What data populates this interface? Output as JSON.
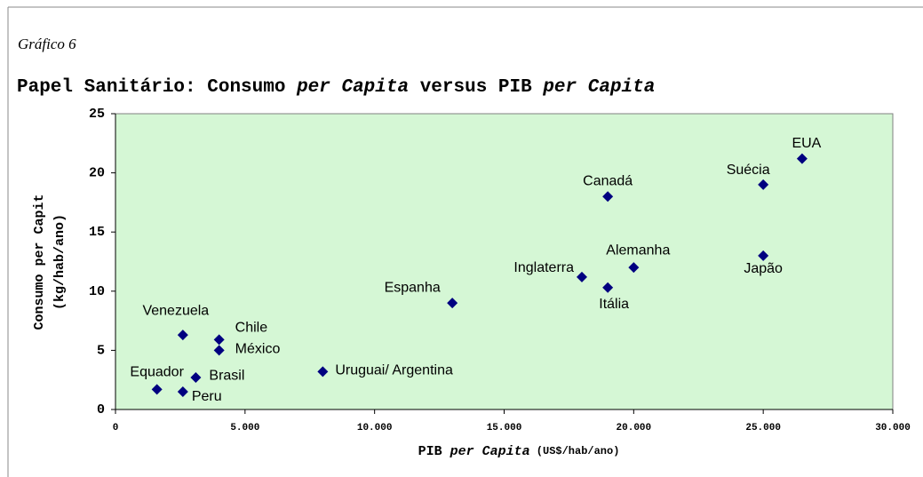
{
  "chart_data": {
    "type": "scatter",
    "subtitle": "Gráfico 6",
    "title": [
      "Papel Sanitário: Consumo ",
      "per Capita",
      " versus PIB ",
      "per Capita"
    ],
    "x_label": [
      "PIB ",
      "per Capita",
      " (US$/hab/ano)"
    ],
    "y_label": [
      "Consumo per Capit",
      "(kg/hab/ano)"
    ],
    "labels": [
      "EUA",
      "Suécia",
      "Japão",
      "Canadá",
      "Alemanha",
      "Inglaterra",
      "Itália",
      "Espanha",
      "Uruguai/ Argentina",
      "Venezuela",
      "Chile",
      "México",
      "Brasil",
      "Equador",
      "Peru"
    ],
    "x": [
      26500,
      25000,
      25000,
      19000,
      20000,
      18000,
      19000,
      13000,
      8000,
      2600,
      4000,
      4000,
      3100,
      1600,
      2600
    ],
    "values": [
      21.2,
      19.0,
      13.0,
      18.0,
      12.0,
      11.2,
      10.3,
      9.0,
      3.2,
      6.3,
      5.9,
      5.0,
      2.7,
      1.7,
      1.5
    ],
    "color": "#000080",
    "plot_background": "#d5f7d5",
    "xlim": [
      0,
      30000
    ],
    "xticks": [
      0,
      {
        "value": 5000,
        "label": "5.000"
      },
      {
        "value": 10000,
        "label": "10.000"
      },
      {
        "value": 15000,
        "label": "15.000"
      },
      {
        "value": 20000,
        "label": "20.000"
      },
      {
        "value": 25000,
        "label": "25.000"
      },
      {
        "value": 30000,
        "label": "30.000"
      }
    ],
    "ylim": [
      0,
      25
    ],
    "yticks": [
      0,
      5,
      10,
      15,
      20,
      25
    ]
  }
}
